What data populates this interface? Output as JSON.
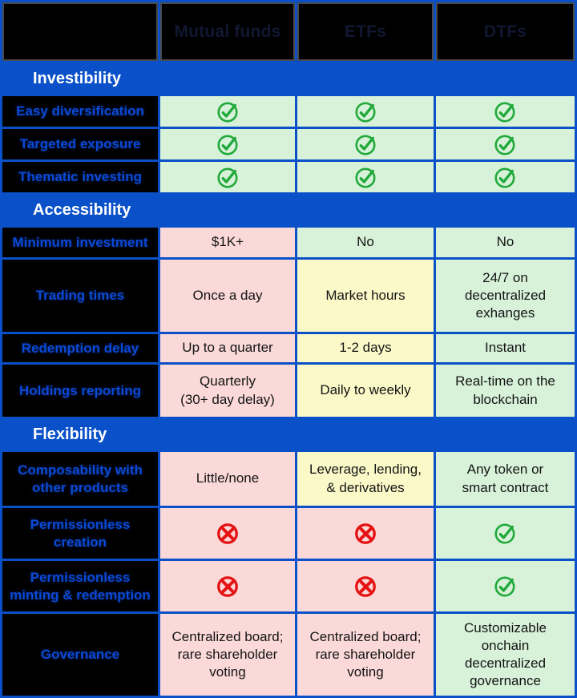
{
  "colors": {
    "frame_blue": "#0A51C9",
    "label_blue": "#0B49D6",
    "header_text_navy": "#111731",
    "band_text_white": "#FFFFFF",
    "good_bg_green": "#D7F2D8",
    "mid_bg_yellow": "#FBF9C8",
    "bad_bg_pink": "#FBD9D9",
    "check_green": "#21A93B",
    "cross_red": "#E51414",
    "header_border_gray": "#4A4A4A",
    "black_cell": "#000000",
    "cell_text": "#141414"
  },
  "icons": {
    "check": "check-circle-icon",
    "cross": "cross-circle-icon"
  },
  "chart_data": {
    "type": "table",
    "columns": [
      "",
      "Mutual funds",
      "ETFs",
      "DTFs"
    ],
    "legend_position": "none",
    "grid": true,
    "sections": [
      {
        "title": "Investibility",
        "rows": [
          {
            "label": "Easy diversification",
            "cells": [
              {
                "icon": "check"
              },
              {
                "icon": "check"
              },
              {
                "icon": "check"
              }
            ]
          },
          {
            "label": "Targeted exposure",
            "cells": [
              {
                "icon": "check"
              },
              {
                "icon": "check"
              },
              {
                "icon": "check"
              }
            ]
          },
          {
            "label": "Thematic investing",
            "cells": [
              {
                "icon": "check"
              },
              {
                "icon": "check"
              },
              {
                "icon": "check"
              }
            ]
          }
        ]
      },
      {
        "title": "Accessibility",
        "rows": [
          {
            "label": "Minimum investment",
            "cells": [
              {
                "text": "$1K+",
                "tone": "bad"
              },
              {
                "text": "No",
                "tone": "good"
              },
              {
                "text": "No",
                "tone": "good"
              }
            ]
          },
          {
            "label": "Trading times",
            "cells": [
              {
                "text": "Once a day",
                "tone": "bad"
              },
              {
                "text": "Market hours",
                "tone": "mid"
              },
              {
                "text": "24/7 on\ndecentralized\nexhanges",
                "tone": "good"
              }
            ]
          },
          {
            "label": "Redemption delay",
            "cells": [
              {
                "text": "Up to a quarter",
                "tone": "bad"
              },
              {
                "text": "1-2 days",
                "tone": "mid"
              },
              {
                "text": "Instant",
                "tone": "good"
              }
            ]
          },
          {
            "label": "Holdings reporting",
            "cells": [
              {
                "text": "Quarterly\n(30+ day delay)",
                "tone": "bad"
              },
              {
                "text": "Daily to weekly",
                "tone": "mid"
              },
              {
                "text": "Real-time on the\nblockchain",
                "tone": "good"
              }
            ]
          }
        ]
      },
      {
        "title": "Flexibility",
        "rows": [
          {
            "label": "Composability with\nother products",
            "cells": [
              {
                "text": "Little/none",
                "tone": "bad"
              },
              {
                "text": "Leverage, lending,\n& derivatives",
                "tone": "mid"
              },
              {
                "text": "Any token or\nsmart contract",
                "tone": "good"
              }
            ]
          },
          {
            "label": "Permissionless\ncreation",
            "cells": [
              {
                "icon": "cross"
              },
              {
                "icon": "cross"
              },
              {
                "icon": "check"
              }
            ]
          },
          {
            "label": "Permissionless\nminting & redemption",
            "cells": [
              {
                "icon": "cross"
              },
              {
                "icon": "cross"
              },
              {
                "icon": "check"
              }
            ]
          },
          {
            "label": "Governance",
            "cells": [
              {
                "text": "Centralized board;\nrare shareholder\nvoting",
                "tone": "bad"
              },
              {
                "text": "Centralized board;\nrare shareholder\nvoting",
                "tone": "bad"
              },
              {
                "text": "Customizable\nonchain\ndecentralized\ngovernance",
                "tone": "good"
              }
            ]
          }
        ]
      }
    ]
  }
}
